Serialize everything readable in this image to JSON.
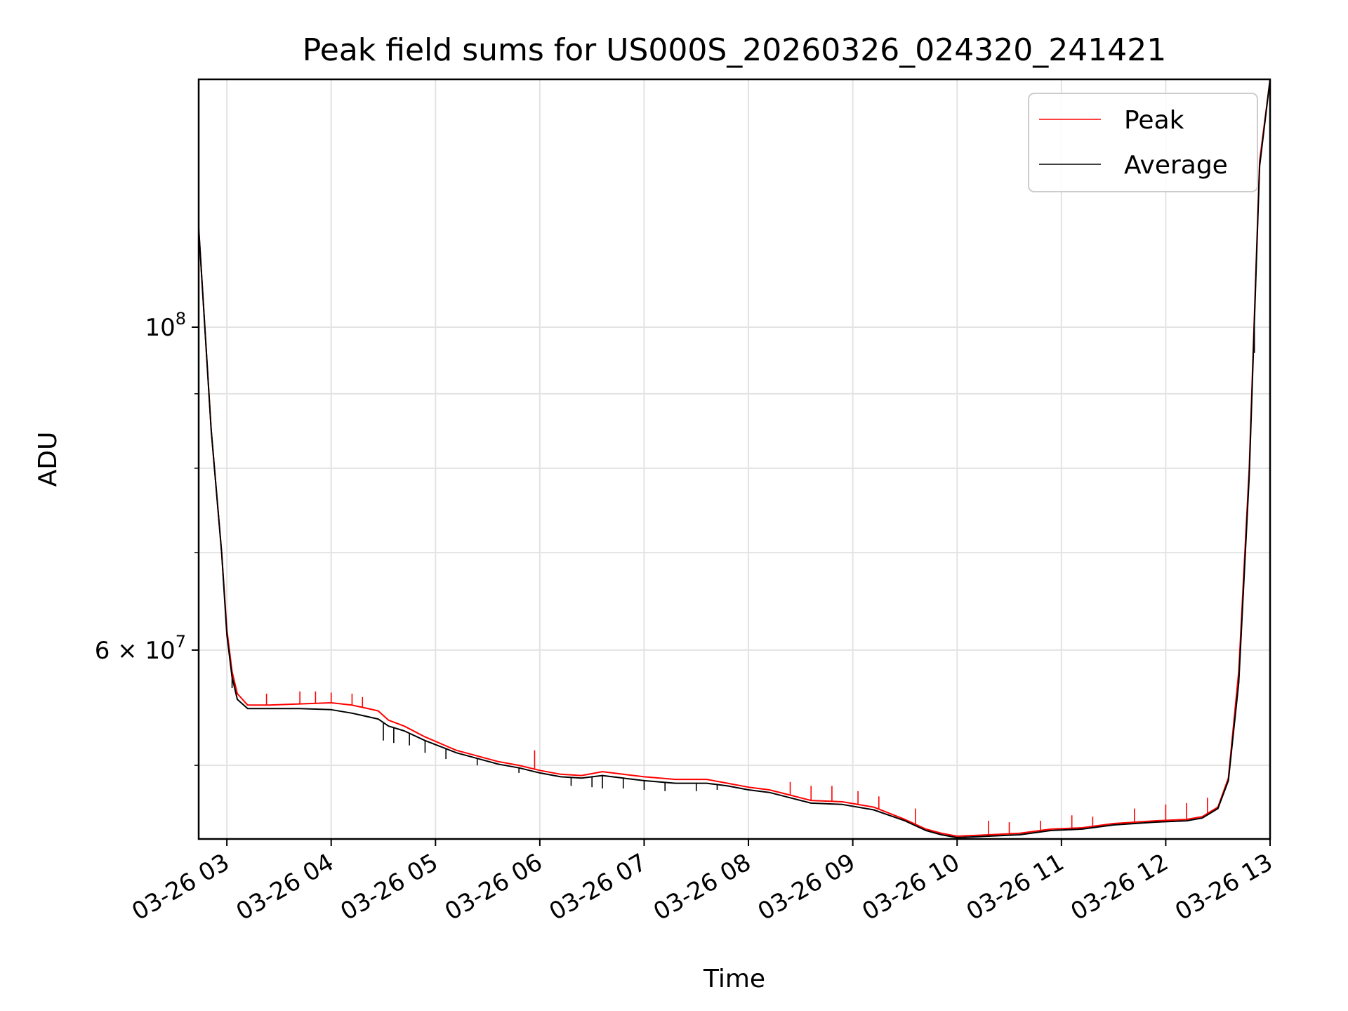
{
  "chart_data": {
    "type": "line",
    "title": "Peak field sums for US000S_20260326_024320_241421",
    "xlabel": "Time",
    "ylabel": "ADU",
    "yscale": "log",
    "ylim": [
      44500000,
      148000000
    ],
    "xlim_hours": [
      2.73,
      13.0
    ],
    "x_tick_values": [
      3,
      4,
      5,
      6,
      7,
      8,
      9,
      10,
      11,
      12,
      13
    ],
    "x_tick_labels": [
      "03-26 03",
      "03-26 04",
      "03-26 05",
      "03-26 06",
      "03-26 07",
      "03-26 08",
      "03-26 09",
      "03-26 10",
      "03-26 11",
      "03-26 12",
      "03-26 13"
    ],
    "y_major_ticks": [
      {
        "value": 100000000,
        "base": "10",
        "exp": "8"
      },
      {
        "value": 60000000,
        "base": "6 × 10",
        "exp": "7"
      }
    ],
    "y_minor_ticks": [
      50000000,
      70000000,
      80000000,
      90000000
    ],
    "grid": true,
    "legend_position": "top-right",
    "series": [
      {
        "name": "Peak",
        "color": "#ff0000",
        "x_hours": [
          2.73,
          2.85,
          2.95,
          3.0,
          3.05,
          3.1,
          3.2,
          3.4,
          3.7,
          4.0,
          4.2,
          4.3,
          4.45,
          4.55,
          4.7,
          4.9,
          5.2,
          5.6,
          5.8,
          6.0,
          6.2,
          6.4,
          6.6,
          6.8,
          7.0,
          7.3,
          7.6,
          7.8,
          8.0,
          8.2,
          8.4,
          8.6,
          8.9,
          9.2,
          9.5,
          9.7,
          9.85,
          10.0,
          10.3,
          10.6,
          10.9,
          11.2,
          11.5,
          11.9,
          12.2,
          12.35,
          12.5,
          12.6,
          12.7,
          12.8,
          12.9,
          13.0
        ],
        "y": [
          117000000,
          85000000,
          70000000,
          62000000,
          58000000,
          56000000,
          55000000,
          55000000,
          55100000,
          55200000,
          55000000,
          54800000,
          54500000,
          53700000,
          53200000,
          52300000,
          51200000,
          50300000,
          50000000,
          49600000,
          49300000,
          49200000,
          49500000,
          49300000,
          49100000,
          48900000,
          48900000,
          48600000,
          48300000,
          48100000,
          47700000,
          47300000,
          47200000,
          46800000,
          45900000,
          45200000,
          44900000,
          44700000,
          44800000,
          44900000,
          45200000,
          45300000,
          45600000,
          45800000,
          45900000,
          46100000,
          46800000,
          49000000,
          58000000,
          80000000,
          130000000,
          148000000
        ],
        "spike_values": [
          [
            3.38,
            56000000
          ],
          [
            3.7,
            56200000
          ],
          [
            3.85,
            56200000
          ],
          [
            4.0,
            56100000
          ],
          [
            4.2,
            56000000
          ],
          [
            4.3,
            55700000
          ],
          [
            5.95,
            51200000
          ],
          [
            8.4,
            48700000
          ],
          [
            8.6,
            48400000
          ],
          [
            8.8,
            48400000
          ],
          [
            9.05,
            48000000
          ],
          [
            9.25,
            47600000
          ],
          [
            9.6,
            46700000
          ],
          [
            10.3,
            45800000
          ],
          [
            10.5,
            45700000
          ],
          [
            10.8,
            45800000
          ],
          [
            11.1,
            46200000
          ],
          [
            11.3,
            46100000
          ],
          [
            11.7,
            46700000
          ],
          [
            12.0,
            47000000
          ],
          [
            12.2,
            47100000
          ],
          [
            12.4,
            47500000
          ]
        ]
      },
      {
        "name": "Average",
        "color": "#000000",
        "x_hours": [
          2.73,
          2.85,
          2.95,
          3.0,
          3.05,
          3.1,
          3.2,
          3.4,
          3.7,
          4.0,
          4.2,
          4.3,
          4.45,
          4.55,
          4.7,
          4.9,
          5.2,
          5.6,
          5.8,
          6.0,
          6.2,
          6.4,
          6.6,
          6.8,
          7.0,
          7.3,
          7.6,
          7.8,
          8.0,
          8.2,
          8.4,
          8.6,
          8.9,
          9.2,
          9.5,
          9.7,
          9.85,
          10.0,
          10.3,
          10.6,
          10.9,
          11.2,
          11.5,
          11.9,
          12.2,
          12.35,
          12.5,
          12.6,
          12.7,
          12.8,
          12.9,
          13.0
        ],
        "y": [
          117000000,
          85000000,
          70000000,
          61500000,
          57500000,
          55500000,
          54700000,
          54700000,
          54700000,
          54600000,
          54300000,
          54100000,
          53800000,
          53200000,
          52800000,
          52000000,
          51000000,
          50100000,
          49800000,
          49400000,
          49100000,
          49000000,
          49200000,
          49000000,
          48800000,
          48600000,
          48600000,
          48400000,
          48100000,
          47900000,
          47500000,
          47100000,
          47000000,
          46600000,
          45800000,
          45100000,
          44800000,
          44600000,
          44700000,
          44800000,
          45100000,
          45200000,
          45500000,
          45700000,
          45800000,
          46000000,
          46700000,
          48800000,
          57000000,
          79000000,
          129000000,
          148000000
        ],
        "dip_values": [
          [
            3.05,
            56500000
          ],
          [
            4.5,
            52000000
          ],
          [
            4.6,
            51800000
          ],
          [
            4.75,
            51600000
          ],
          [
            4.9,
            51000000
          ],
          [
            5.1,
            50500000
          ],
          [
            5.4,
            50000000
          ],
          [
            5.8,
            49400000
          ],
          [
            6.3,
            48400000
          ],
          [
            6.5,
            48300000
          ],
          [
            6.6,
            48200000
          ],
          [
            6.8,
            48200000
          ],
          [
            7.0,
            48100000
          ],
          [
            7.2,
            48000000
          ],
          [
            7.5,
            48000000
          ],
          [
            7.7,
            48100000
          ],
          [
            12.85,
            96000000
          ]
        ]
      }
    ]
  }
}
